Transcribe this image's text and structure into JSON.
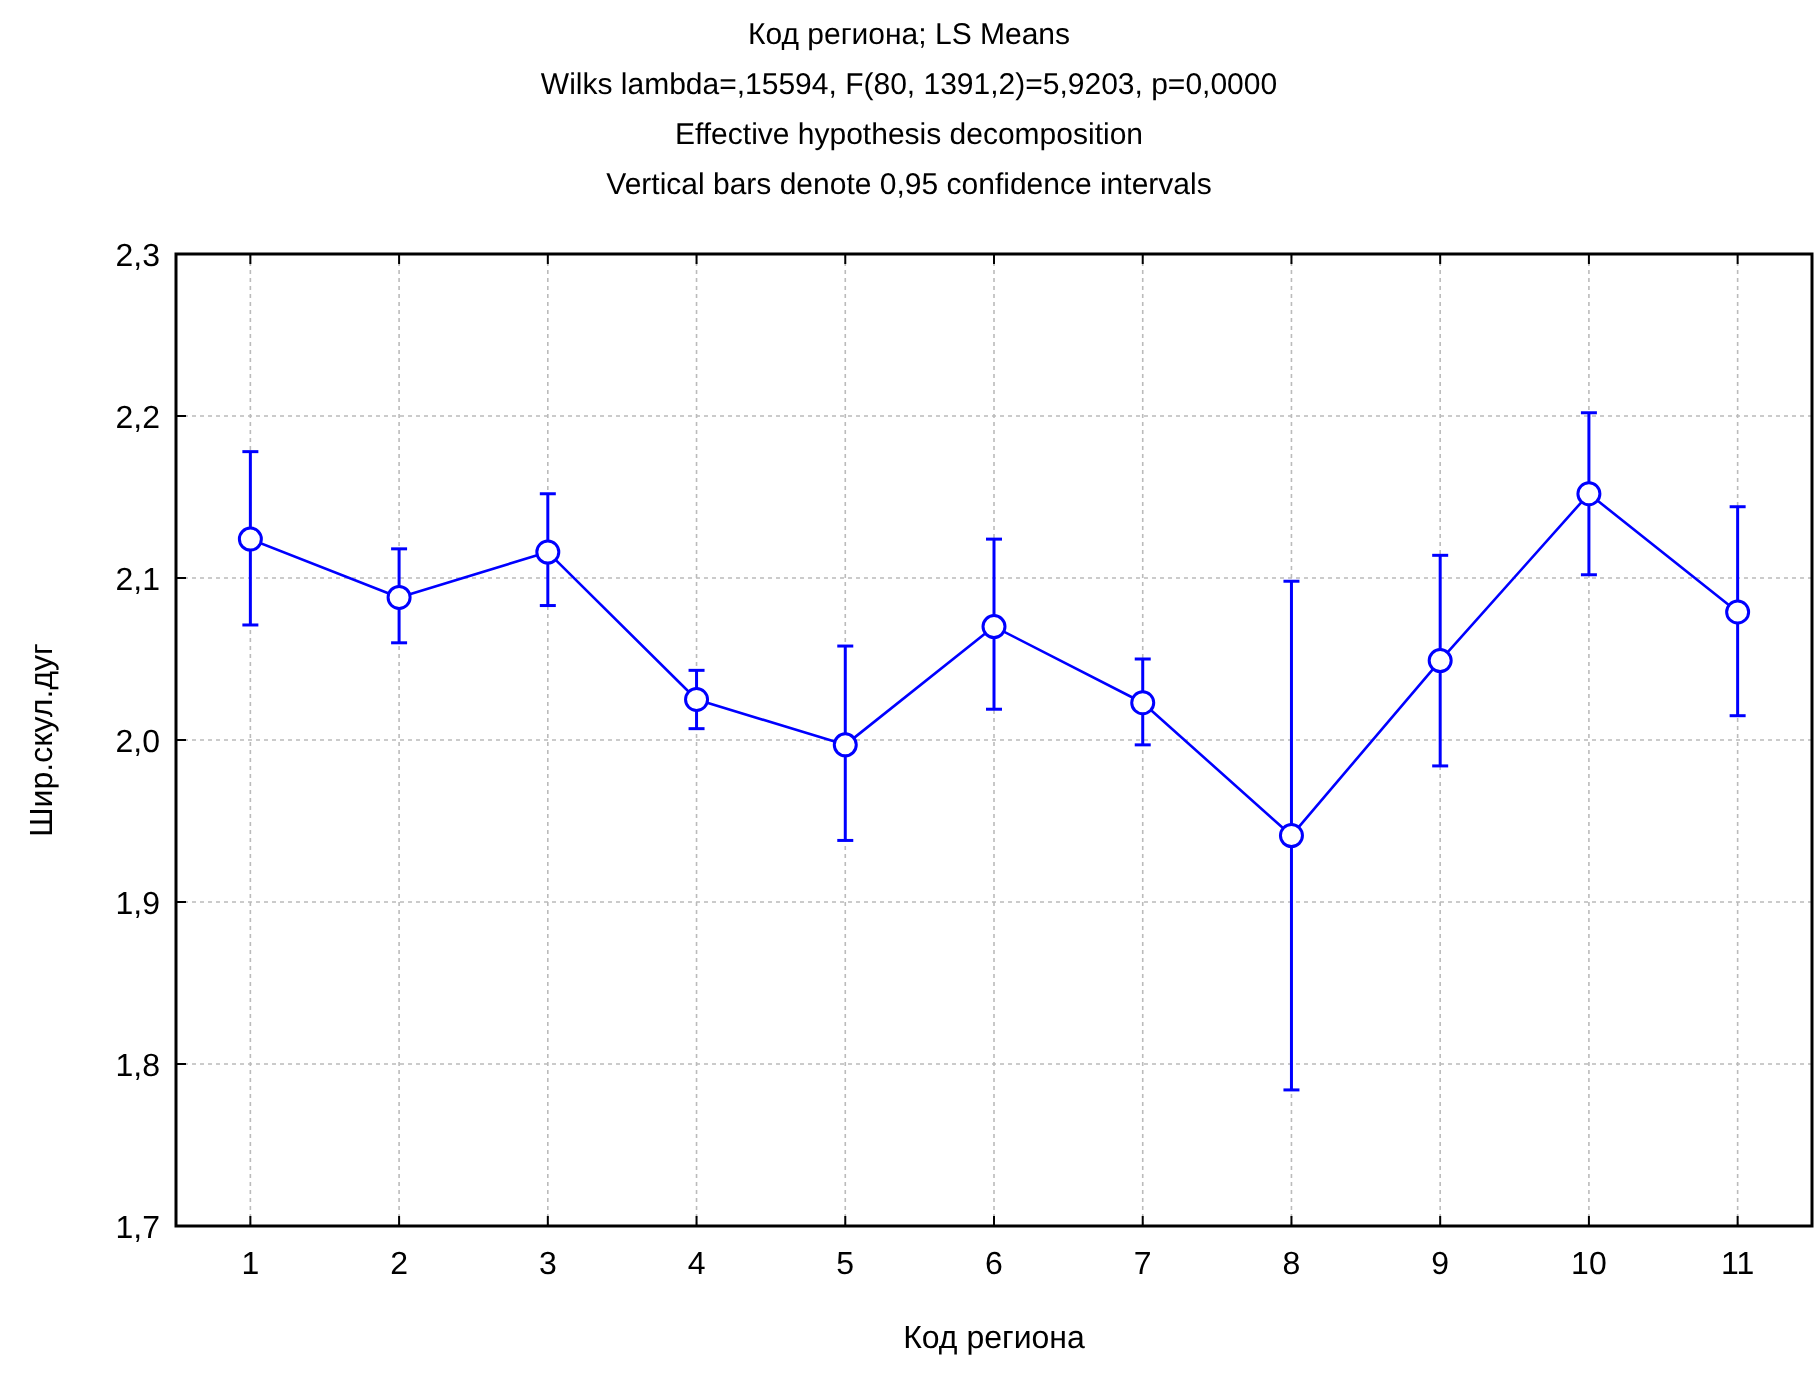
{
  "chart_data": {
    "type": "line",
    "title": "Код региона; LS Means",
    "subtitle": "Wilks lambda=,15594, F(80, 1391,2)=5,9203, p=0,0000\nEffective hypothesis decomposition\nVertical bars denote 0,95 confidence intervals",
    "xlabel": "Код региона",
    "ylabel": "Шир.скул.дуг",
    "categories": [
      "1",
      "2",
      "3",
      "4",
      "5",
      "6",
      "7",
      "8",
      "9",
      "10",
      "11"
    ],
    "series": [
      {
        "color": "#0000ff",
        "values": [
          2.124,
          2.088,
          2.116,
          2.025,
          1.997,
          2.07,
          2.023,
          1.941,
          2.049,
          2.152,
          2.079
        ],
        "errors": [
          [
            2.071,
            2.178
          ],
          [
            2.06,
            2.118
          ],
          [
            2.083,
            2.152
          ],
          [
            2.007,
            2.043
          ],
          [
            1.938,
            2.058
          ],
          [
            2.019,
            2.124
          ],
          [
            1.997,
            2.05
          ],
          [
            1.784,
            2.098
          ],
          [
            1.984,
            2.114
          ],
          [
            2.102,
            2.202
          ],
          [
            2.015,
            2.144
          ]
        ]
      }
    ],
    "ylim": [
      1.7,
      2.3
    ],
    "yticks": [
      {
        "value": 1.7,
        "label": "1,7"
      },
      {
        "value": 1.8,
        "label": "1,8"
      },
      {
        "value": 1.9,
        "label": "1,9"
      },
      {
        "value": 2.0,
        "label": "2,0"
      },
      {
        "value": 2.1,
        "label": "2,1"
      },
      {
        "value": 2.2,
        "label": "2,2"
      },
      {
        "value": 2.3,
        "label": "2,3"
      }
    ],
    "grid": true,
    "marker": "circle",
    "line_style": "solid"
  }
}
